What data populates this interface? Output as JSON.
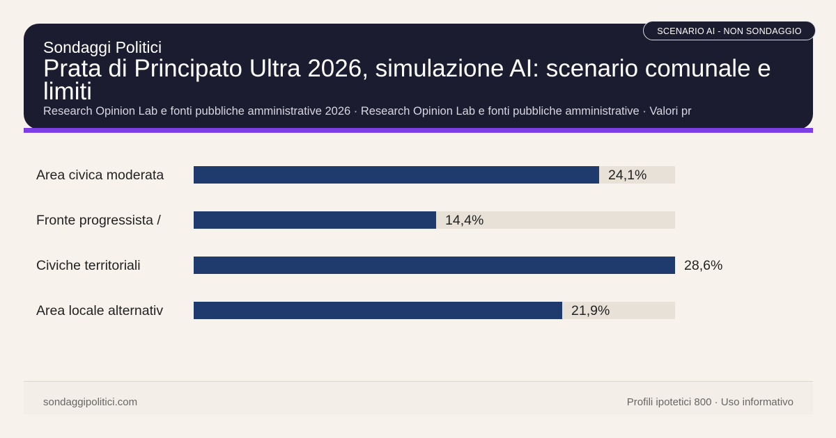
{
  "header": {
    "brand": "Sondaggi Politici",
    "title": "Prata di Principato Ultra 2026, simulazione AI: scenario comunale e limiti",
    "subtitle": "Research Opinion Lab e fonti pubbliche amministrative 2026 · Research Opinion Lab e fonti pubbliche amministrative · Valori pr",
    "badge": "SCENARIO AI - NON SONDAGGIO"
  },
  "chart_data": {
    "type": "bar",
    "orientation": "horizontal",
    "categories": [
      "Area civica moderata",
      "Fronte progressista /",
      "Civiche territoriali",
      "Area locale alternativ"
    ],
    "values": [
      24.1,
      14.4,
      28.6,
      21.9
    ],
    "value_labels": [
      "24,1%",
      "14,4%",
      "28,6%",
      "21,9%"
    ],
    "xlim": [
      0,
      28.6
    ],
    "title": "",
    "xlabel": "",
    "ylabel": "",
    "grid": false,
    "colors": {
      "bar": "#1f3a6c",
      "track": "#e8e1d8"
    }
  },
  "footer": {
    "left": "sondaggipolitici.com",
    "right": "Profili ipotetici 800 · Uso informativo"
  },
  "colors": {
    "header_bg": "#1c1c30",
    "accent": "#7b3fe4",
    "page_bg": "#f7f3ec"
  }
}
